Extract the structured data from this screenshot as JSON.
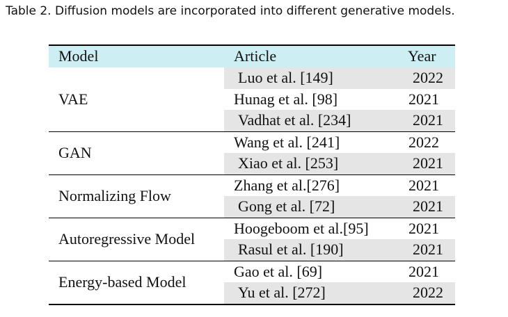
{
  "caption": "Table 2.  Diffusion models are incorporated into different generative models.",
  "headers": {
    "model": "Model",
    "article": "Article",
    "year": "Year"
  },
  "groups": [
    {
      "model": "VAE",
      "rows": [
        {
          "article": "Luo et al. [149]",
          "year": "2022"
        },
        {
          "article": "Hunag et al. [98]",
          "year": "2021"
        },
        {
          "article": "Vadhat et al. [234]",
          "year": "2021"
        }
      ]
    },
    {
      "model": "GAN",
      "rows": [
        {
          "article": "Wang et al. [241]",
          "year": "2022"
        },
        {
          "article": "Xiao et al. [253]",
          "year": "2021"
        }
      ]
    },
    {
      "model": "Normalizing Flow",
      "rows": [
        {
          "article": "Zhang et al.[276]",
          "year": "2021"
        },
        {
          "article": "Gong et al. [72]",
          "year": "2021"
        }
      ]
    },
    {
      "model": "Autoregressive Model",
      "rows": [
        {
          "article": "Hoogeboom et al.[95]",
          "year": "2021"
        },
        {
          "article": "Rasul et al. [190]",
          "year": "2021"
        }
      ]
    },
    {
      "model": "Energy-based Model",
      "rows": [
        {
          "article": "Gao et al. [69]",
          "year": "2021"
        },
        {
          "article": "Yu et al. [272]",
          "year": "2022"
        }
      ]
    }
  ]
}
